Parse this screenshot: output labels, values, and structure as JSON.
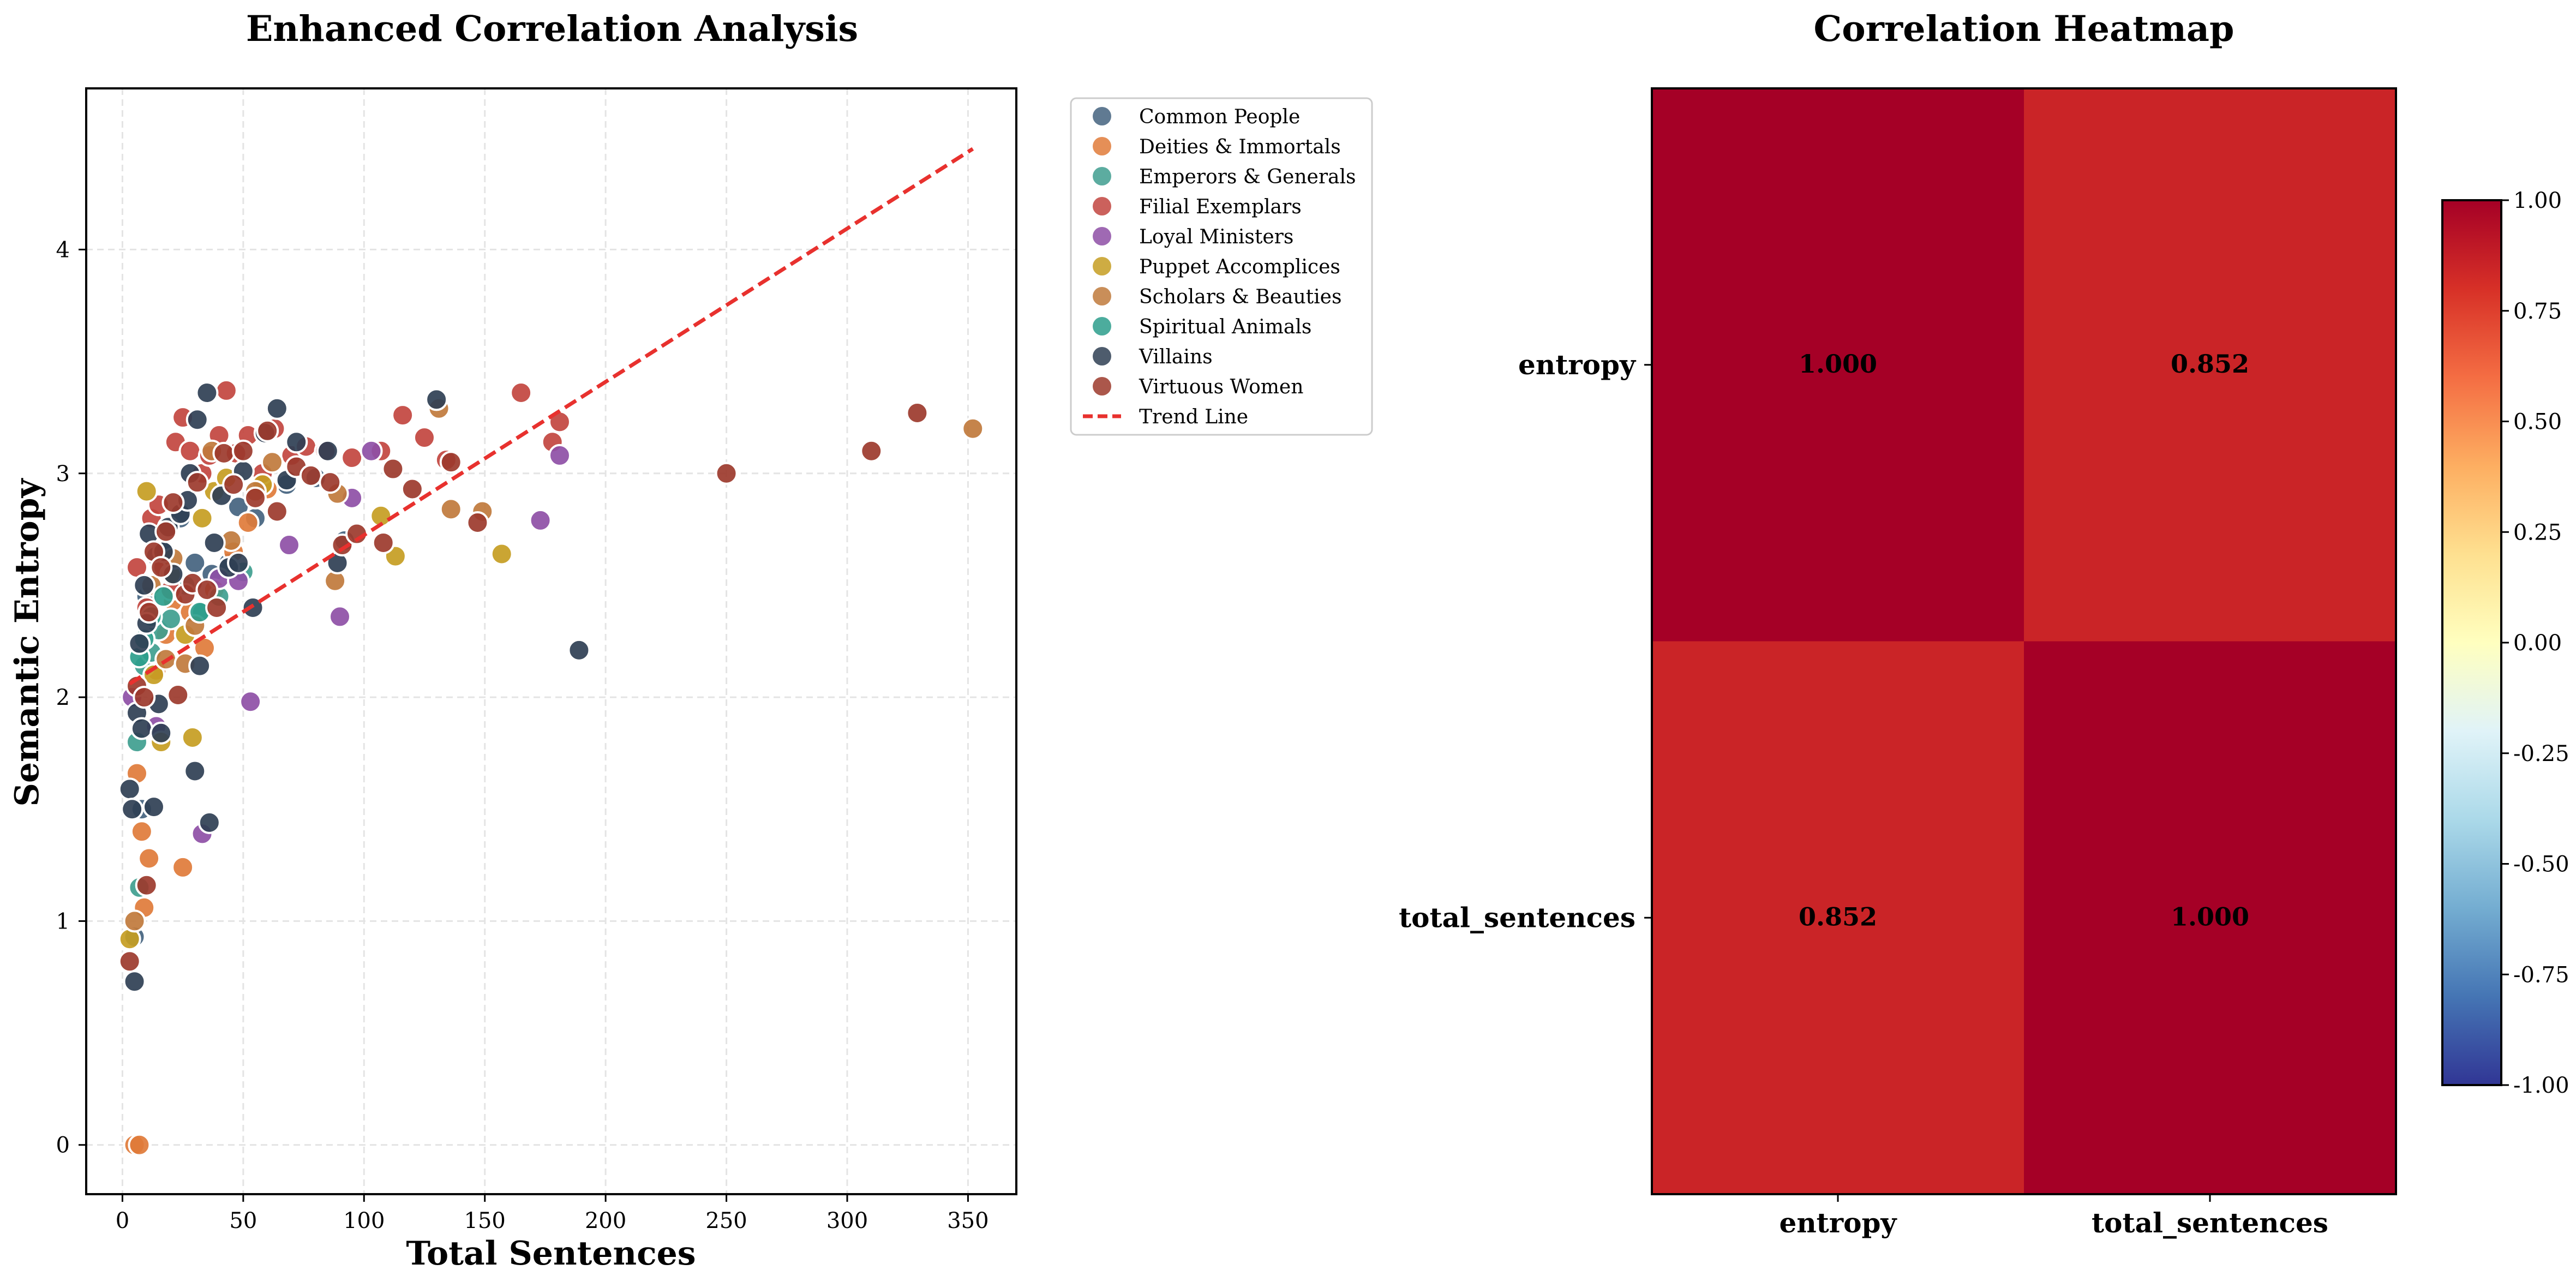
{
  "chart_data": [
    {
      "type": "scatter",
      "title": "Enhanced Correlation Analysis",
      "xlabel": "Total Sentences",
      "ylabel": "Semantic Entropy",
      "xlim": [
        -15,
        370
      ],
      "ylim": [
        -0.22,
        4.72
      ],
      "xticks": [
        0,
        50,
        100,
        150,
        200,
        250,
        300,
        350
      ],
      "yticks": [
        0,
        1,
        2,
        3,
        4
      ],
      "grid": true,
      "legend_position": "outside-right",
      "trend_line": {
        "name": "Trend Line",
        "x": [
          3,
          352
        ],
        "y": [
          2.06,
          4.45
        ],
        "color": "#e8312e",
        "style": "dashed"
      },
      "series": [
        {
          "name": "Common People",
          "color": "#44637f",
          "points": [
            [
              5,
              0.93
            ],
            [
              8,
              1.5
            ],
            [
              10,
              2.45
            ],
            [
              14,
              2.63
            ],
            [
              18,
              2.65
            ],
            [
              24,
              2.8
            ],
            [
              30,
              2.6
            ],
            [
              37,
              2.55
            ],
            [
              44,
              2.6
            ],
            [
              48,
              2.85
            ],
            [
              55,
              2.8
            ],
            [
              68,
              2.95
            ],
            [
              80,
              2.98
            ],
            [
              92,
              2.7
            ]
          ]
        },
        {
          "name": "Deities & Immortals",
          "color": "#e07b39",
          "points": [
            [
              5,
              0.0
            ],
            [
              7,
              0.0
            ],
            [
              6,
              1.66
            ],
            [
              9,
              1.06
            ],
            [
              8,
              1.4
            ],
            [
              11,
              1.28
            ],
            [
              14,
              2.12
            ],
            [
              18,
              2.28
            ],
            [
              21,
              2.43
            ],
            [
              25,
              1.24
            ],
            [
              28,
              2.38
            ],
            [
              34,
              2.22
            ],
            [
              38,
              2.48
            ],
            [
              46,
              2.65
            ],
            [
              52,
              2.78
            ],
            [
              60,
              2.93
            ]
          ]
        },
        {
          "name": "Emperors & Generals",
          "color": "#3f9e8f",
          "points": [
            [
              6,
              1.8
            ],
            [
              7,
              1.15
            ],
            [
              9,
              2.14
            ],
            [
              12,
              2.2
            ],
            [
              15,
              2.3
            ],
            [
              20,
              2.35
            ],
            [
              26,
              2.5
            ],
            [
              33,
              2.38
            ],
            [
              40,
              2.45
            ],
            [
              50,
              2.56
            ]
          ]
        },
        {
          "name": "Filial Exemplars",
          "color": "#c2453f",
          "points": [
            [
              6,
              2.58
            ],
            [
              10,
              2.4
            ],
            [
              12,
              2.8
            ],
            [
              15,
              2.86
            ],
            [
              17,
              2.58
            ],
            [
              20,
              2.48
            ],
            [
              22,
              3.14
            ],
            [
              25,
              3.25
            ],
            [
              28,
              3.1
            ],
            [
              33,
              3.0
            ],
            [
              36,
              3.08
            ],
            [
              40,
              3.17
            ],
            [
              43,
              3.37
            ],
            [
              47,
              3.09
            ],
            [
              52,
              3.17
            ],
            [
              58,
              3.0
            ],
            [
              63,
              3.2
            ],
            [
              70,
              3.08
            ],
            [
              76,
              3.12
            ],
            [
              84,
              3.1
            ],
            [
              95,
              3.07
            ],
            [
              107,
              3.1
            ],
            [
              116,
              3.26
            ],
            [
              125,
              3.16
            ],
            [
              134,
              3.06
            ],
            [
              165,
              3.36
            ],
            [
              178,
              3.14
            ],
            [
              181,
              3.23
            ]
          ]
        },
        {
          "name": "Loyal Ministers",
          "color": "#8e4fa6",
          "points": [
            [
              4,
              2.0
            ],
            [
              14,
              1.87
            ],
            [
              33,
              1.39
            ],
            [
              40,
              2.53
            ],
            [
              48,
              2.52
            ],
            [
              53,
              1.98
            ],
            [
              69,
              2.68
            ],
            [
              90,
              2.36
            ],
            [
              95,
              2.89
            ],
            [
              103,
              3.1
            ],
            [
              173,
              2.79
            ],
            [
              181,
              3.08
            ]
          ]
        },
        {
          "name": "Puppet Accomplices",
          "color": "#c69d22",
          "points": [
            [
              3,
              0.92
            ],
            [
              10,
              2.92
            ],
            [
              13,
              2.1
            ],
            [
              16,
              1.8
            ],
            [
              20,
              2.55
            ],
            [
              26,
              2.28
            ],
            [
              29,
              1.82
            ],
            [
              33,
              2.8
            ],
            [
              38,
              2.92
            ],
            [
              43,
              2.98
            ],
            [
              58,
              2.95
            ],
            [
              107,
              2.81
            ],
            [
              113,
              2.63
            ],
            [
              157,
              2.64
            ]
          ]
        },
        {
          "name": "Scholars & Beauties",
          "color": "#c07a3c",
          "points": [
            [
              5,
              1.0
            ],
            [
              12,
              2.5
            ],
            [
              18,
              2.17
            ],
            [
              21,
              2.62
            ],
            [
              26,
              2.15
            ],
            [
              30,
              2.32
            ],
            [
              37,
              3.1
            ],
            [
              45,
              2.7
            ],
            [
              55,
              2.92
            ],
            [
              62,
              3.05
            ],
            [
              88,
              2.52
            ],
            [
              89,
              2.91
            ],
            [
              131,
              3.29
            ],
            [
              136,
              2.84
            ],
            [
              149,
              2.83
            ],
            [
              352,
              3.2
            ]
          ]
        },
        {
          "name": "Spiritual Animals",
          "color": "#2d9e8c",
          "points": [
            [
              7,
              2.18
            ],
            [
              9,
              2.26
            ],
            [
              12,
              2.36
            ],
            [
              17,
              2.45
            ],
            [
              32,
              2.38
            ]
          ]
        },
        {
          "name": "Villains",
          "color": "#2f3f54",
          "points": [
            [
              3,
              1.59
            ],
            [
              4,
              1.5
            ],
            [
              5,
              0.73
            ],
            [
              6,
              1.93
            ],
            [
              7,
              2.24
            ],
            [
              8,
              1.86
            ],
            [
              9,
              2.5
            ],
            [
              10,
              2.33
            ],
            [
              11,
              2.73
            ],
            [
              13,
              1.51
            ],
            [
              15,
              1.97
            ],
            [
              16,
              1.84
            ],
            [
              17,
              2.65
            ],
            [
              19,
              2.76
            ],
            [
              21,
              2.55
            ],
            [
              24,
              2.82
            ],
            [
              27,
              2.88
            ],
            [
              28,
              3.0
            ],
            [
              30,
              1.67
            ],
            [
              31,
              3.24
            ],
            [
              32,
              2.14
            ],
            [
              35,
              3.36
            ],
            [
              36,
              1.44
            ],
            [
              38,
              2.69
            ],
            [
              41,
              2.9
            ],
            [
              44,
              2.58
            ],
            [
              48,
              2.6
            ],
            [
              50,
              3.01
            ],
            [
              54,
              2.4
            ],
            [
              59,
              3.18
            ],
            [
              64,
              3.29
            ],
            [
              68,
              2.97
            ],
            [
              72,
              3.14
            ],
            [
              85,
              3.1
            ],
            [
              89,
              2.6
            ],
            [
              130,
              3.33
            ],
            [
              189,
              2.21
            ]
          ]
        },
        {
          "name": "Virtuous Women",
          "color": "#9c3a2c",
          "points": [
            [
              3,
              0.82
            ],
            [
              6,
              2.05
            ],
            [
              9,
              2.0
            ],
            [
              10,
              1.16
            ],
            [
              11,
              2.38
            ],
            [
              13,
              2.65
            ],
            [
              16,
              2.58
            ],
            [
              18,
              2.74
            ],
            [
              21,
              2.87
            ],
            [
              23,
              2.01
            ],
            [
              26,
              2.46
            ],
            [
              29,
              2.51
            ],
            [
              31,
              2.96
            ],
            [
              35,
              2.48
            ],
            [
              39,
              2.4
            ],
            [
              42,
              3.09
            ],
            [
              46,
              2.95
            ],
            [
              50,
              3.1
            ],
            [
              55,
              2.89
            ],
            [
              60,
              3.19
            ],
            [
              64,
              2.83
            ],
            [
              72,
              3.03
            ],
            [
              78,
              2.99
            ],
            [
              86,
              2.96
            ],
            [
              91,
              2.68
            ],
            [
              97,
              2.73
            ],
            [
              108,
              2.69
            ],
            [
              112,
              3.02
            ],
            [
              120,
              2.93
            ],
            [
              136,
              3.05
            ],
            [
              147,
              2.78
            ],
            [
              250,
              3.0
            ],
            [
              310,
              3.1
            ],
            [
              329,
              3.27
            ]
          ]
        }
      ]
    },
    {
      "type": "heatmap",
      "title": "Correlation Heatmap",
      "row_labels": [
        "entropy",
        "total_sentences"
      ],
      "col_labels": [
        "entropy",
        "total_sentences"
      ],
      "values": [
        [
          1.0,
          0.852
        ],
        [
          0.852,
          1.0
        ]
      ],
      "value_labels": [
        [
          "1.000",
          "0.852"
        ],
        [
          "0.852",
          "1.000"
        ]
      ],
      "colormap": "RdYlBu_r",
      "vmin": -1,
      "vmax": 1,
      "colorbar_ticks": [
        "1.00",
        "0.75",
        "0.50",
        "0.25",
        "0.00",
        "-0.25",
        "-0.50",
        "-0.75",
        "-1.00"
      ],
      "colorbar_values": [
        1.0,
        0.75,
        0.5,
        0.25,
        0.0,
        -0.25,
        -0.5,
        -0.75,
        -1.0
      ]
    }
  ]
}
